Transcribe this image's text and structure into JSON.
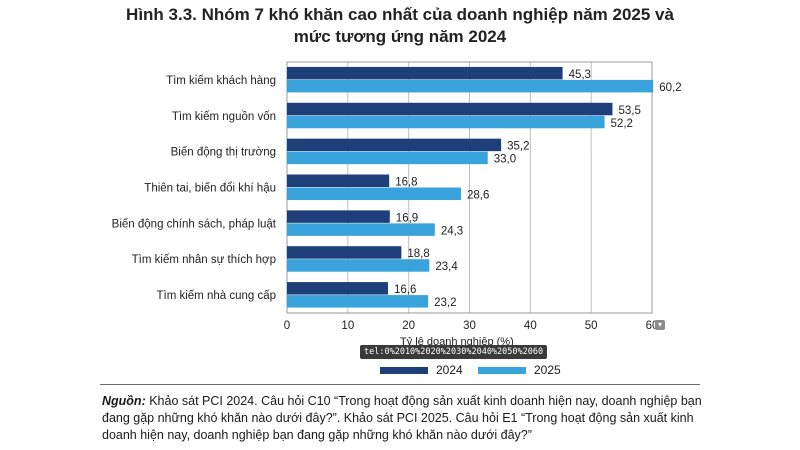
{
  "title_line1": "Hình 3.3. Nhóm 7 khó khăn cao nhất của doanh nghiệp năm 2025 và",
  "title_line2": "mức tương ứng năm 2024",
  "tooltip": "tel:0%2010%2020%2030%2040%2050%2060",
  "source_label": "Nguồn:",
  "source_text": " Khảo sát PCI 2024. Câu hỏi C10 “Trong hoạt động sản xuất kinh doanh hiện nay, doanh nghiệp bạn đang gặp những khó khăn nào dưới đây?”. Khảo sát PCI 2025. Câu hỏi E1 “Trong hoạt động sản xuất kinh doanh hiện nay, doanh nghiệp bạn đang gặp những khó khăn nào dưới đây?”",
  "colors": {
    "series2024": "#1f3f7a",
    "series2025": "#3aa3dc",
    "grid": "#bfbfbf"
  },
  "corner_icon": "chevron-down-icon",
  "chart_data": {
    "type": "bar",
    "orientation": "horizontal",
    "categories": [
      "Tìm kiếm khách hàng",
      "Tìm kiếm nguồn vốn",
      "Biến động thị trường",
      "Thiên tai, biến đổi khí hậu",
      "Biến động chính sách, pháp luật",
      "Tìm kiếm nhân sự thích hợp",
      "Tìm kiếm nhà cung cấp"
    ],
    "series": [
      {
        "name": "2024",
        "values": [
          45.3,
          53.5,
          35.2,
          16.8,
          16.9,
          18.8,
          16.6
        ],
        "labels": [
          "45,3",
          "53,5",
          "35,2",
          "16,8",
          "16,9",
          "18,8",
          "16,6"
        ]
      },
      {
        "name": "2025",
        "values": [
          60.2,
          52.2,
          33.0,
          28.6,
          24.3,
          23.4,
          23.2
        ],
        "labels": [
          "60,2",
          "52,2",
          "33,0",
          "28,6",
          "24,3",
          "23,4",
          "23,2"
        ]
      }
    ],
    "xlabel": "Tỷ lệ doanh nghiệp (%)",
    "xlim": [
      0,
      60
    ],
    "ticks": [
      0,
      10,
      20,
      30,
      40,
      50,
      60
    ],
    "grid": true,
    "legend_position": "bottom"
  }
}
